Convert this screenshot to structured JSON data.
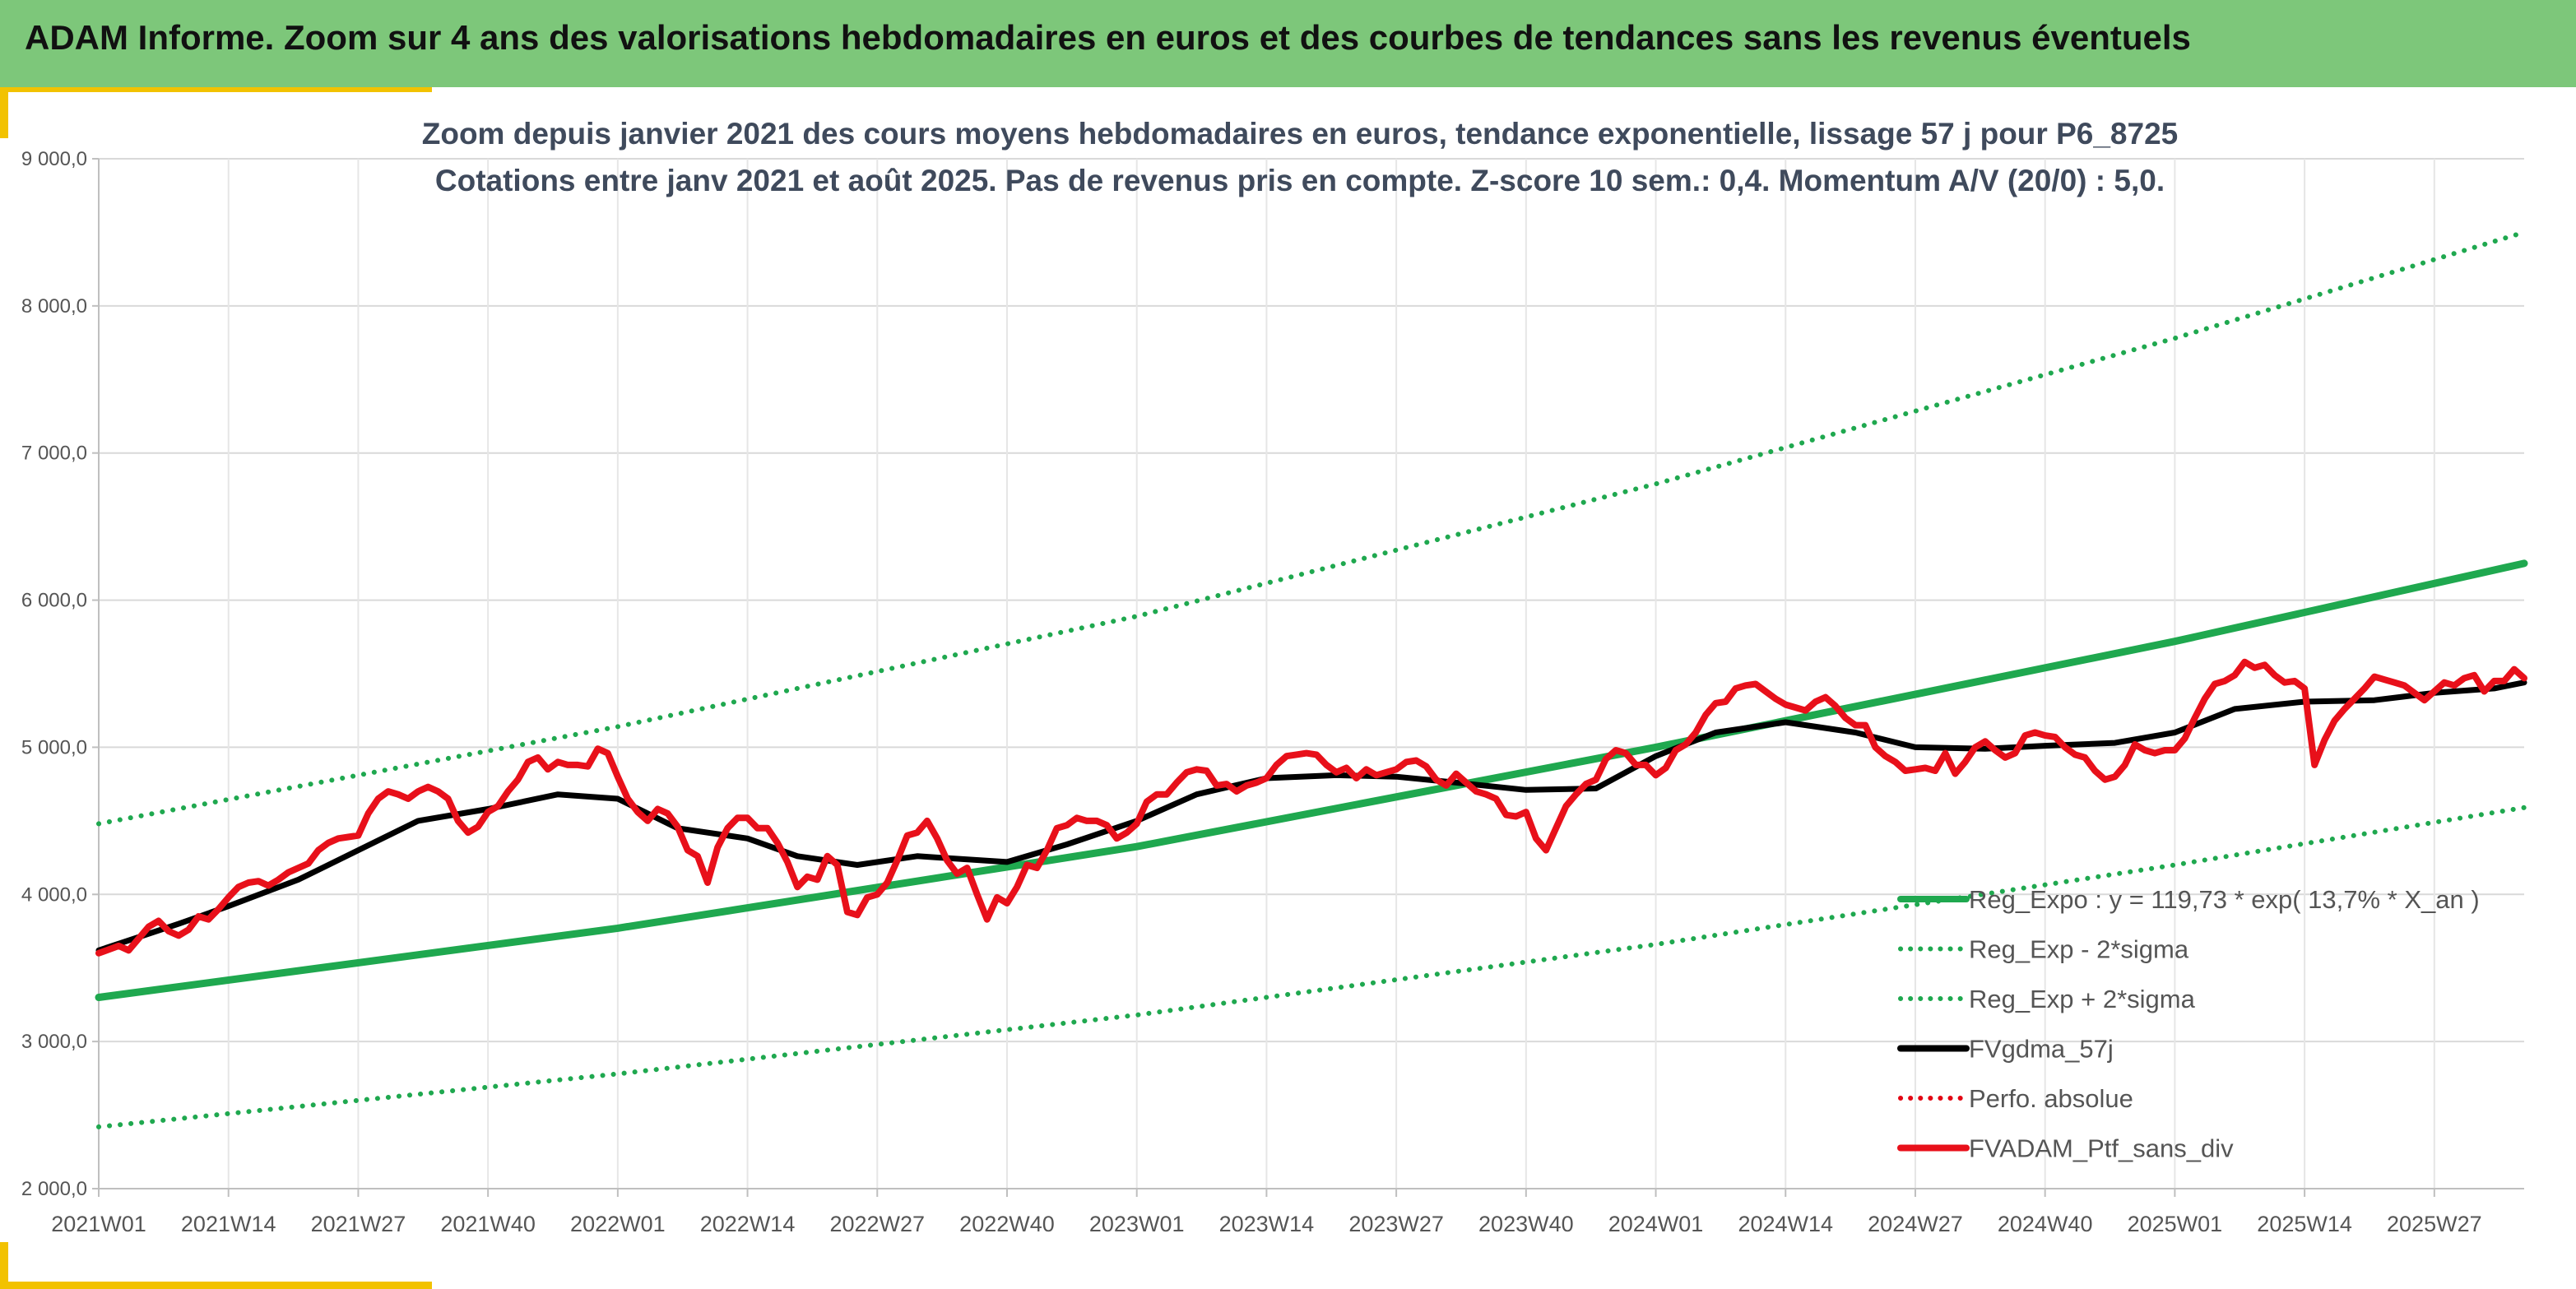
{
  "banner": {
    "title": "ADAM Informe. Zoom sur 4 ans des valorisations hebdomadaires en euros et des courbes de tendances sans les revenus éventuels",
    "color": "#7dc77a"
  },
  "chart_data": {
    "type": "line",
    "title_lines": [
      "Zoom depuis janvier 2021 des cours moyens hebdomadaires en euros, tendance exponentielle, lissage 57 j pour P6_8725",
      "Cotations entre janv 2021 et août 2025. Pas de revenus pris en compte. Z-score 10 sem.: 0,4. Momentum A/V (20/0) : 5,0."
    ],
    "x_tick_labels": [
      "2021W01",
      "2021W14",
      "2021W27",
      "2021W40",
      "2022W01",
      "2022W14",
      "2022W27",
      "2022W40",
      "2023W01",
      "2023W14",
      "2023W27",
      "2023W40",
      "2024W01",
      "2024W14",
      "2024W27",
      "2024W40",
      "2025W01",
      "2025W14",
      "2025W27"
    ],
    "x_tick_weeks": [
      0,
      13,
      26,
      39,
      52,
      65,
      78,
      91,
      104,
      117,
      130,
      143,
      156,
      169,
      182,
      195,
      208,
      221,
      234
    ],
    "x_range_weeks": [
      0,
      243
    ],
    "y_tick_labels": [
      "2 000,0",
      "3 000,0",
      "4 000,0",
      "5 000,0",
      "6 000,0",
      "7 000,0",
      "8 000,0",
      "9 000,0"
    ],
    "ylim": [
      2000,
      9000
    ],
    "grid": true,
    "legend_position": "right",
    "series": [
      {
        "name": "Reg_Expo : y = 119,73 * exp( 13,7% *  X_an )",
        "key": "reg_expo",
        "color": "#1fa84f",
        "style": "solid",
        "points": [
          [
            0,
            3300
          ],
          [
            52,
            3770
          ],
          [
            104,
            4325
          ],
          [
            156,
            5000
          ],
          [
            208,
            5720
          ],
          [
            243,
            6250
          ]
        ]
      },
      {
        "name": "Reg_Exp - 2*sigma",
        "key": "reg_minus",
        "color": "#1fa84f",
        "style": "dotted",
        "points": [
          [
            0,
            2420
          ],
          [
            52,
            2780
          ],
          [
            104,
            3180
          ],
          [
            156,
            3660
          ],
          [
            208,
            4200
          ],
          [
            243,
            4590
          ]
        ]
      },
      {
        "name": "Reg_Exp + 2*sigma",
        "key": "reg_plus",
        "color": "#1fa84f",
        "style": "dotted",
        "points": [
          [
            0,
            4480
          ],
          [
            52,
            5140
          ],
          [
            104,
            5890
          ],
          [
            156,
            6790
          ],
          [
            208,
            7780
          ],
          [
            243,
            8500
          ]
        ]
      },
      {
        "name": "FVgdma_57j",
        "key": "gdma",
        "color": "#000000",
        "style": "solid",
        "points": [
          [
            0,
            3620
          ],
          [
            8,
            3800
          ],
          [
            13,
            3920
          ],
          [
            20,
            4100
          ],
          [
            26,
            4300
          ],
          [
            32,
            4500
          ],
          [
            39,
            4580
          ],
          [
            46,
            4680
          ],
          [
            52,
            4650
          ],
          [
            58,
            4450
          ],
          [
            65,
            4380
          ],
          [
            70,
            4260
          ],
          [
            76,
            4200
          ],
          [
            82,
            4260
          ],
          [
            91,
            4220
          ],
          [
            97,
            4340
          ],
          [
            104,
            4500
          ],
          [
            110,
            4680
          ],
          [
            117,
            4790
          ],
          [
            124,
            4810
          ],
          [
            130,
            4800
          ],
          [
            136,
            4760
          ],
          [
            143,
            4710
          ],
          [
            150,
            4720
          ],
          [
            156,
            4940
          ],
          [
            162,
            5100
          ],
          [
            169,
            5170
          ],
          [
            176,
            5100
          ],
          [
            182,
            5000
          ],
          [
            189,
            4990
          ],
          [
            195,
            5010
          ],
          [
            202,
            5030
          ],
          [
            208,
            5100
          ],
          [
            214,
            5260
          ],
          [
            221,
            5310
          ],
          [
            228,
            5320
          ],
          [
            234,
            5370
          ],
          [
            240,
            5400
          ],
          [
            243,
            5440
          ]
        ]
      },
      {
        "name": "Perfo. absolue",
        "key": "perfo",
        "color": "#e30613",
        "style": "dotted",
        "points": []
      },
      {
        "name": "FVADAM_Ptf_sans_div",
        "key": "ptf",
        "color": "#e8101a",
        "style": "solid",
        "points": [
          [
            0,
            3600
          ],
          [
            2,
            3650
          ],
          [
            3,
            3620
          ],
          [
            5,
            3780
          ],
          [
            6,
            3820
          ],
          [
            7,
            3750
          ],
          [
            8,
            3720
          ],
          [
            9,
            3760
          ],
          [
            10,
            3850
          ],
          [
            11,
            3830
          ],
          [
            12,
            3900
          ],
          [
            13,
            3980
          ],
          [
            14,
            4050
          ],
          [
            15,
            4080
          ],
          [
            16,
            4090
          ],
          [
            17,
            4060
          ],
          [
            18,
            4100
          ],
          [
            19,
            4150
          ],
          [
            20,
            4180
          ],
          [
            21,
            4210
          ],
          [
            22,
            4300
          ],
          [
            23,
            4350
          ],
          [
            24,
            4380
          ],
          [
            25,
            4390
          ],
          [
            26,
            4400
          ],
          [
            27,
            4550
          ],
          [
            28,
            4650
          ],
          [
            29,
            4700
          ],
          [
            30,
            4680
          ],
          [
            31,
            4650
          ],
          [
            32,
            4700
          ],
          [
            33,
            4730
          ],
          [
            34,
            4700
          ],
          [
            35,
            4650
          ],
          [
            36,
            4500
          ],
          [
            37,
            4420
          ],
          [
            38,
            4460
          ],
          [
            39,
            4560
          ],
          [
            40,
            4600
          ],
          [
            41,
            4700
          ],
          [
            42,
            4780
          ],
          [
            43,
            4900
          ],
          [
            44,
            4930
          ],
          [
            45,
            4850
          ],
          [
            46,
            4900
          ],
          [
            47,
            4880
          ],
          [
            48,
            4880
          ],
          [
            49,
            4870
          ],
          [
            50,
            4990
          ],
          [
            51,
            4960
          ],
          [
            52,
            4800
          ],
          [
            53,
            4650
          ],
          [
            54,
            4560
          ],
          [
            55,
            4500
          ],
          [
            56,
            4580
          ],
          [
            57,
            4550
          ],
          [
            58,
            4460
          ],
          [
            59,
            4300
          ],
          [
            60,
            4260
          ],
          [
            61,
            4080
          ],
          [
            62,
            4320
          ],
          [
            63,
            4450
          ],
          [
            64,
            4520
          ],
          [
            65,
            4520
          ],
          [
            66,
            4450
          ],
          [
            67,
            4450
          ],
          [
            68,
            4350
          ],
          [
            69,
            4220
          ],
          [
            70,
            4050
          ],
          [
            71,
            4120
          ],
          [
            72,
            4100
          ],
          [
            73,
            4260
          ],
          [
            74,
            4200
          ],
          [
            75,
            3880
          ],
          [
            76,
            3860
          ],
          [
            77,
            3980
          ],
          [
            78,
            4000
          ],
          [
            79,
            4080
          ],
          [
            80,
            4230
          ],
          [
            81,
            4400
          ],
          [
            82,
            4420
          ],
          [
            83,
            4500
          ],
          [
            84,
            4380
          ],
          [
            85,
            4230
          ],
          [
            86,
            4140
          ],
          [
            87,
            4180
          ],
          [
            88,
            4000
          ],
          [
            89,
            3830
          ],
          [
            90,
            3980
          ],
          [
            91,
            3940
          ],
          [
            92,
            4050
          ],
          [
            93,
            4200
          ],
          [
            94,
            4180
          ],
          [
            95,
            4300
          ],
          [
            96,
            4450
          ],
          [
            97,
            4470
          ],
          [
            98,
            4520
          ],
          [
            99,
            4500
          ],
          [
            100,
            4500
          ],
          [
            101,
            4470
          ],
          [
            102,
            4380
          ],
          [
            103,
            4420
          ],
          [
            104,
            4480
          ],
          [
            105,
            4630
          ],
          [
            106,
            4680
          ],
          [
            107,
            4680
          ],
          [
            108,
            4760
          ],
          [
            109,
            4830
          ],
          [
            110,
            4850
          ],
          [
            111,
            4840
          ],
          [
            112,
            4740
          ],
          [
            113,
            4750
          ],
          [
            114,
            4700
          ],
          [
            115,
            4740
          ],
          [
            116,
            4760
          ],
          [
            117,
            4790
          ],
          [
            118,
            4880
          ],
          [
            119,
            4940
          ],
          [
            120,
            4950
          ],
          [
            121,
            4960
          ],
          [
            122,
            4950
          ],
          [
            123,
            4880
          ],
          [
            124,
            4830
          ],
          [
            125,
            4860
          ],
          [
            126,
            4790
          ],
          [
            127,
            4850
          ],
          [
            128,
            4810
          ],
          [
            129,
            4830
          ],
          [
            130,
            4850
          ],
          [
            131,
            4900
          ],
          [
            132,
            4910
          ],
          [
            133,
            4870
          ],
          [
            134,
            4780
          ],
          [
            135,
            4740
          ],
          [
            136,
            4820
          ],
          [
            137,
            4760
          ],
          [
            138,
            4700
          ],
          [
            139,
            4680
          ],
          [
            140,
            4650
          ],
          [
            141,
            4540
          ],
          [
            142,
            4530
          ],
          [
            143,
            4560
          ],
          [
            144,
            4380
          ],
          [
            145,
            4300
          ],
          [
            146,
            4450
          ],
          [
            147,
            4600
          ],
          [
            148,
            4680
          ],
          [
            149,
            4750
          ],
          [
            150,
            4780
          ],
          [
            151,
            4920
          ],
          [
            152,
            4980
          ],
          [
            153,
            4960
          ],
          [
            154,
            4880
          ],
          [
            155,
            4880
          ],
          [
            156,
            4810
          ],
          [
            157,
            4860
          ],
          [
            158,
            4980
          ],
          [
            159,
            5020
          ],
          [
            160,
            5100
          ],
          [
            161,
            5220
          ],
          [
            162,
            5300
          ],
          [
            163,
            5310
          ],
          [
            164,
            5400
          ],
          [
            165,
            5420
          ],
          [
            166,
            5430
          ],
          [
            167,
            5380
          ],
          [
            168,
            5330
          ],
          [
            169,
            5290
          ],
          [
            170,
            5270
          ],
          [
            171,
            5250
          ],
          [
            172,
            5310
          ],
          [
            173,
            5340
          ],
          [
            174,
            5280
          ],
          [
            175,
            5200
          ],
          [
            176,
            5150
          ],
          [
            177,
            5150
          ],
          [
            178,
            5000
          ],
          [
            179,
            4940
          ],
          [
            180,
            4900
          ],
          [
            181,
            4840
          ],
          [
            182,
            4850
          ],
          [
            183,
            4860
          ],
          [
            184,
            4840
          ],
          [
            185,
            4960
          ],
          [
            186,
            4820
          ],
          [
            187,
            4900
          ],
          [
            188,
            5000
          ],
          [
            189,
            5040
          ],
          [
            190,
            4980
          ],
          [
            191,
            4930
          ],
          [
            192,
            4960
          ],
          [
            193,
            5080
          ],
          [
            194,
            5100
          ],
          [
            195,
            5080
          ],
          [
            196,
            5070
          ],
          [
            197,
            5000
          ],
          [
            198,
            4950
          ],
          [
            199,
            4930
          ],
          [
            200,
            4840
          ],
          [
            201,
            4780
          ],
          [
            202,
            4800
          ],
          [
            203,
            4880
          ],
          [
            204,
            5020
          ],
          [
            205,
            4980
          ],
          [
            206,
            4960
          ],
          [
            207,
            4980
          ],
          [
            208,
            4980
          ],
          [
            209,
            5060
          ],
          [
            210,
            5200
          ],
          [
            211,
            5330
          ],
          [
            212,
            5430
          ],
          [
            213,
            5450
          ],
          [
            214,
            5490
          ],
          [
            215,
            5580
          ],
          [
            216,
            5540
          ],
          [
            217,
            5560
          ],
          [
            218,
            5490
          ],
          [
            219,
            5440
          ],
          [
            220,
            5450
          ],
          [
            221,
            5400
          ],
          [
            222,
            4880
          ],
          [
            223,
            5050
          ],
          [
            224,
            5180
          ],
          [
            225,
            5260
          ],
          [
            226,
            5330
          ],
          [
            227,
            5400
          ],
          [
            228,
            5480
          ],
          [
            229,
            5460
          ],
          [
            230,
            5440
          ],
          [
            231,
            5420
          ],
          [
            232,
            5370
          ],
          [
            233,
            5320
          ],
          [
            234,
            5380
          ],
          [
            235,
            5440
          ],
          [
            236,
            5420
          ],
          [
            237,
            5470
          ],
          [
            238,
            5490
          ],
          [
            239,
            5380
          ],
          [
            240,
            5450
          ],
          [
            241,
            5450
          ],
          [
            242,
            5530
          ],
          [
            243,
            5470
          ]
        ]
      }
    ]
  }
}
